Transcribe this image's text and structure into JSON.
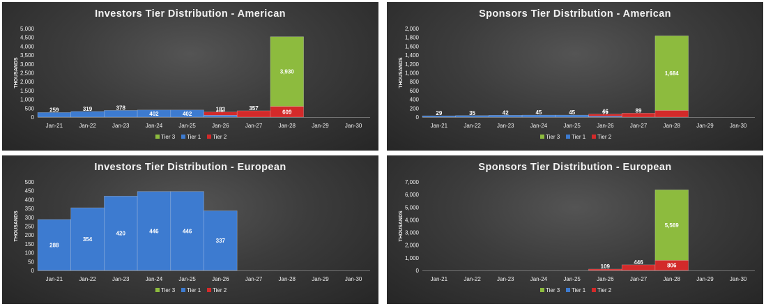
{
  "colors": {
    "tier3": "#8DBB3E",
    "tier1": "#3D7BD0",
    "tier2": "#D32A2A"
  },
  "legend": [
    "Tier 3",
    "Tier 1",
    "Tier 2"
  ],
  "chart_data": [
    {
      "type": "bar",
      "title": "Investors Tier Distribution - American",
      "ylabel": "THOUSANDS",
      "ylim": [
        0,
        5000
      ],
      "yticks": [
        "0",
        "500",
        "1,000",
        "1,500",
        "2,000",
        "2,500",
        "3,000",
        "3,500",
        "4,000",
        "4,500",
        "5,000"
      ],
      "categories": [
        "Jan-21",
        "Jan-22",
        "Jan-23",
        "Jan-24",
        "Jan-25",
        "Jan-26",
        "Jan-27",
        "Jan-28",
        "Jan-29",
        "Jan-30"
      ],
      "series": [
        {
          "name": "Tier 1",
          "values": [
            259,
            319,
            378,
            402,
            402,
            106,
            0,
            0,
            0,
            0
          ],
          "labels": [
            "259",
            "319",
            "378",
            "402",
            "402",
            "106",
            "",
            "",
            "",
            ""
          ]
        },
        {
          "name": "Tier 2",
          "values": [
            0,
            0,
            0,
            0,
            0,
            183,
            357,
            609,
            0,
            0
          ],
          "labels": [
            "",
            "",
            "",
            "",
            "",
            "183",
            "357",
            "609",
            "",
            ""
          ]
        },
        {
          "name": "Tier 3",
          "values": [
            0,
            0,
            0,
            0,
            0,
            0,
            0,
            3930,
            0,
            0
          ],
          "labels": [
            "",
            "",
            "",
            "",
            "",
            "",
            "",
            "3,930",
            "",
            ""
          ]
        }
      ],
      "legend_position": "bottom"
    },
    {
      "type": "bar",
      "title": "Sponsors Tier Distribution - American",
      "ylabel": "THOUSANDS",
      "ylim": [
        0,
        2000
      ],
      "yticks": [
        "0",
        "200",
        "400",
        "600",
        "800",
        "1,000",
        "1,200",
        "1,400",
        "1,600",
        "1,800",
        "2,000"
      ],
      "categories": [
        "Jan-21",
        "Jan-22",
        "Jan-23",
        "Jan-24",
        "Jan-25",
        "Jan-26",
        "Jan-27",
        "Jan-28",
        "Jan-29",
        "Jan-30"
      ],
      "series": [
        {
          "name": "Tier 1",
          "values": [
            29,
            35,
            42,
            45,
            45,
            22,
            0,
            0,
            0,
            0
          ],
          "labels": [
            "29",
            "35",
            "42",
            "45",
            "45",
            "22",
            "",
            "",
            "",
            ""
          ]
        },
        {
          "name": "Tier 2",
          "values": [
            0,
            0,
            0,
            0,
            0,
            46,
            89,
            152,
            0,
            0
          ],
          "labels": [
            "",
            "",
            "",
            "",
            "",
            "46",
            "89",
            "152",
            "",
            ""
          ]
        },
        {
          "name": "Tier 3",
          "values": [
            0,
            0,
            0,
            0,
            0,
            0,
            0,
            1684,
            0,
            0
          ],
          "labels": [
            "",
            "",
            "",
            "",
            "",
            "",
            "",
            "1,684",
            "",
            ""
          ]
        }
      ],
      "legend_position": "bottom"
    },
    {
      "type": "bar",
      "title": "Investors Tier Distribution - European",
      "ylabel": "THOUSANDS",
      "ylim": [
        0,
        500
      ],
      "yticks": [
        "0",
        "50",
        "100",
        "150",
        "200",
        "250",
        "300",
        "350",
        "400",
        "450",
        "500"
      ],
      "categories": [
        "Jan-21",
        "Jan-22",
        "Jan-23",
        "Jan-24",
        "Jan-25",
        "Jan-26",
        "Jan-27",
        "Jan-28",
        "Jan-29",
        "Jan-30"
      ],
      "series": [
        {
          "name": "Tier 1",
          "values": [
            288,
            354,
            420,
            446,
            446,
            337,
            0,
            0,
            0,
            0
          ],
          "labels": [
            "288",
            "354",
            "420",
            "446",
            "446",
            "337",
            "",
            "",
            "",
            ""
          ]
        },
        {
          "name": "Tier 2",
          "values": [
            0,
            0,
            0,
            0,
            0,
            0,
            0,
            0,
            0,
            0
          ],
          "labels": [
            "",
            "",
            "",
            "",
            "",
            "",
            "",
            "",
            "",
            ""
          ]
        },
        {
          "name": "Tier 3",
          "values": [
            0,
            0,
            0,
            0,
            0,
            0,
            0,
            0,
            0,
            0
          ],
          "labels": [
            "",
            "",
            "",
            "",
            "",
            "",
            "",
            "",
            "",
            ""
          ]
        }
      ],
      "legend_position": "bottom"
    },
    {
      "type": "bar",
      "title": "Sponsors Tier Distribution - European",
      "ylabel": "THOUSANDS",
      "ylim": [
        0,
        7000
      ],
      "yticks": [
        "0",
        "1,000",
        "2,000",
        "3,000",
        "4,000",
        "5,000",
        "6,000",
        "7,000"
      ],
      "categories": [
        "Jan-21",
        "Jan-22",
        "Jan-23",
        "Jan-24",
        "Jan-25",
        "Jan-26",
        "Jan-27",
        "Jan-28",
        "Jan-29",
        "Jan-30"
      ],
      "series": [
        {
          "name": "Tier 1",
          "values": [
            0,
            0,
            0,
            0,
            0,
            0,
            0,
            0,
            0,
            0
          ],
          "labels": [
            "",
            "",
            "",
            "",
            "",
            "",
            "",
            "",
            "",
            ""
          ]
        },
        {
          "name": "Tier 2",
          "values": [
            0,
            0,
            0,
            0,
            0,
            109,
            446,
            806,
            0,
            0
          ],
          "labels": [
            "",
            "",
            "",
            "",
            "",
            "109",
            "446",
            "806",
            "",
            ""
          ]
        },
        {
          "name": "Tier 3",
          "values": [
            0,
            0,
            0,
            0,
            0,
            0,
            0,
            5569,
            0,
            0
          ],
          "labels": [
            "",
            "",
            "",
            "",
            "",
            "",
            "",
            "5,569",
            "",
            ""
          ]
        }
      ],
      "legend_position": "bottom"
    }
  ]
}
